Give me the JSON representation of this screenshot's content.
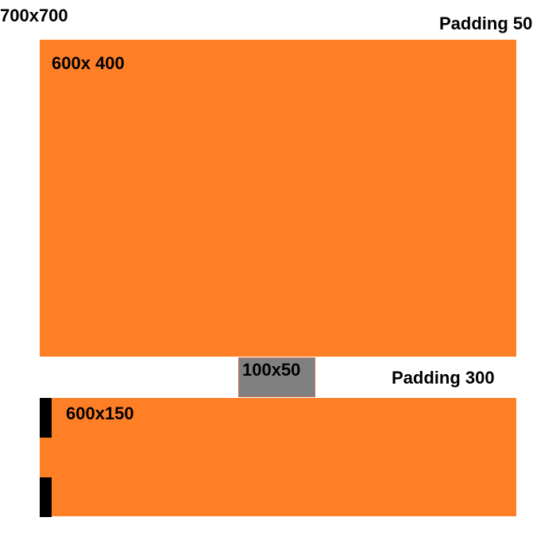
{
  "labels": {
    "canvas": "700x700",
    "padding_top": "Padding 50",
    "padding_middle": "Padding 300"
  },
  "blocks": {
    "top": {
      "label": "600x 400"
    },
    "center": {
      "label": "100x50"
    },
    "bottom": {
      "label": "600x150"
    }
  },
  "colors": {
    "block_fill": "#ff7f27",
    "center_fill": "#808080",
    "marker_fill": "#000000",
    "background": "#ffffff"
  }
}
